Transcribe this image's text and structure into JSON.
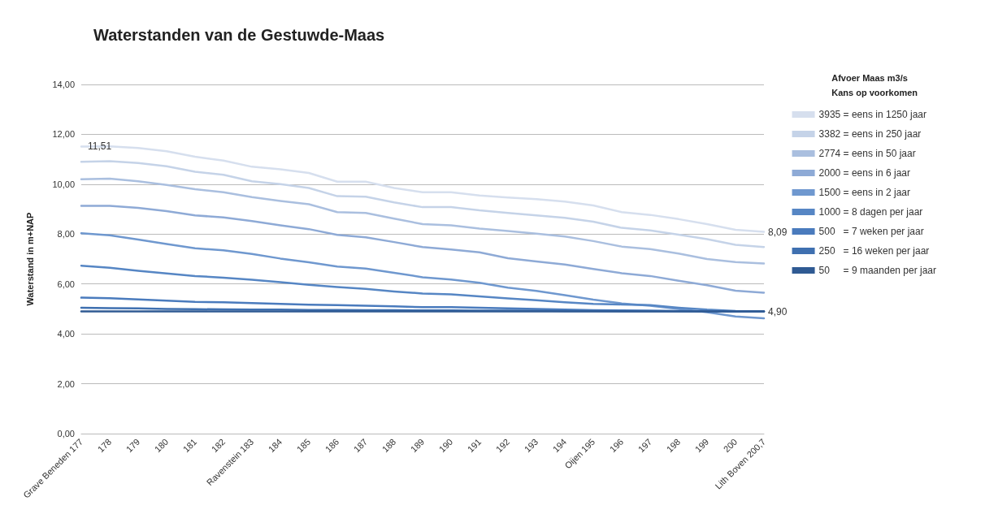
{
  "chart_data": {
    "type": "line",
    "title": "Waterstanden van de Gestuwde-Maas",
    "ylabel": "Waterstand in m+NAP",
    "legend_title": "Afvoer Maas m3/s\nKans op voorkomen",
    "categories": [
      "Grave Beneden 177",
      "178",
      "179",
      "180",
      "181",
      "182",
      "Ravenstein 183",
      "184",
      "185",
      "186",
      "187",
      "188",
      "189",
      "190",
      "191",
      "192",
      "193",
      "194",
      "Oijen 195",
      "196",
      "197",
      "198",
      "199",
      "200",
      "Lith Boven 200,7"
    ],
    "series": [
      {
        "name": "3935 = eens in 1250 jaar",
        "color": "#d6dfee",
        "values": [
          11.51,
          11.52,
          11.45,
          11.32,
          11.1,
          10.95,
          10.7,
          10.6,
          10.45,
          10.1,
          10.1,
          9.85,
          9.68,
          9.68,
          9.55,
          9.47,
          9.4,
          9.3,
          9.15,
          8.88,
          8.77,
          8.6,
          8.4,
          8.17,
          8.09
        ],
        "value_labels": [
          "11,51",
          null,
          null,
          null,
          null,
          null,
          null,
          null,
          null,
          null,
          null,
          null,
          null,
          null,
          null,
          null,
          null,
          null,
          null,
          null,
          null,
          null,
          null,
          null,
          "8,09"
        ]
      },
      {
        "name": "3382 = eens in 250 jaar",
        "color": "#c5d3e8",
        "values": [
          10.9,
          10.92,
          10.85,
          10.72,
          10.5,
          10.38,
          10.12,
          10.0,
          9.85,
          9.52,
          9.5,
          9.27,
          9.08,
          9.08,
          8.95,
          8.85,
          8.75,
          8.65,
          8.5,
          8.25,
          8.15,
          7.98,
          7.8,
          7.57,
          7.48
        ]
      },
      {
        "name": "2774 = eens in 50 jaar",
        "color": "#aabfdf",
        "values": [
          10.2,
          10.22,
          10.12,
          9.97,
          9.8,
          9.68,
          9.48,
          9.33,
          9.2,
          8.88,
          8.85,
          8.62,
          8.4,
          8.35,
          8.22,
          8.12,
          8.02,
          7.9,
          7.72,
          7.5,
          7.4,
          7.22,
          7.0,
          6.88,
          6.82
        ]
      },
      {
        "name": "2000 = eens in 6 jaar",
        "color": "#8eaad6",
        "values": [
          9.13,
          9.13,
          9.05,
          8.92,
          8.75,
          8.67,
          8.52,
          8.35,
          8.2,
          7.97,
          7.87,
          7.68,
          7.48,
          7.38,
          7.27,
          7.03,
          6.9,
          6.78,
          6.6,
          6.43,
          6.32,
          6.13,
          5.95,
          5.73,
          5.65
        ]
      },
      {
        "name": "1500 = eens in 2 jaar",
        "color": "#6f98cf",
        "values": [
          8.03,
          7.95,
          7.78,
          7.6,
          7.43,
          7.35,
          7.2,
          7.02,
          6.87,
          6.7,
          6.62,
          6.45,
          6.27,
          6.18,
          6.05,
          5.85,
          5.72,
          5.55,
          5.37,
          5.22,
          5.13,
          5.0,
          4.87,
          4.7,
          4.62
        ]
      },
      {
        "name": "1000 = 8 dagen per jaar",
        "color": "#5686c4",
        "values": [
          6.73,
          6.65,
          6.53,
          6.42,
          6.32,
          6.25,
          6.17,
          6.07,
          5.97,
          5.88,
          5.8,
          5.7,
          5.62,
          5.58,
          5.5,
          5.42,
          5.35,
          5.27,
          5.2,
          5.18,
          5.15,
          5.05,
          4.97,
          4.92,
          4.9
        ]
      },
      {
        "name": "500   = 7 weken per jaar",
        "color": "#4a7bbd",
        "values": [
          5.45,
          5.43,
          5.38,
          5.33,
          5.28,
          5.27,
          5.23,
          5.2,
          5.17,
          5.15,
          5.13,
          5.1,
          5.07,
          5.07,
          5.05,
          5.02,
          5.0,
          4.97,
          4.95,
          4.94,
          4.93,
          4.92,
          4.91,
          4.9,
          4.9
        ]
      },
      {
        "name": "250   = 16 weken per jaar",
        "color": "#3f70b0",
        "values": [
          5.05,
          5.03,
          5.02,
          5.0,
          4.99,
          4.98,
          4.97,
          4.97,
          4.96,
          4.96,
          4.95,
          4.95,
          4.94,
          4.94,
          4.93,
          4.93,
          4.93,
          4.92,
          4.92,
          4.91,
          4.91,
          4.91,
          4.9,
          4.9,
          4.9
        ]
      },
      {
        "name": "50     = 9 maanden per jaar",
        "color": "#2f5a93",
        "values": [
          4.9,
          4.9,
          4.9,
          4.9,
          4.9,
          4.9,
          4.9,
          4.9,
          4.9,
          4.9,
          4.9,
          4.9,
          4.9,
          4.9,
          4.9,
          4.9,
          4.9,
          4.9,
          4.9,
          4.9,
          4.9,
          4.9,
          4.9,
          4.9,
          4.9
        ],
        "value_labels": [
          null,
          null,
          null,
          null,
          null,
          null,
          null,
          null,
          null,
          null,
          null,
          null,
          null,
          null,
          null,
          null,
          null,
          null,
          null,
          null,
          null,
          null,
          null,
          null,
          "4,90"
        ]
      }
    ],
    "ylim": [
      0,
      14
    ],
    "yticks": [
      {
        "value": 0,
        "label": "0,00"
      },
      {
        "value": 2,
        "label": "2,00"
      },
      {
        "value": 4,
        "label": "4,00"
      },
      {
        "value": 6,
        "label": "6,00"
      },
      {
        "value": 8,
        "label": "8,00"
      },
      {
        "value": 10,
        "label": "10,00"
      },
      {
        "value": 12,
        "label": "12,00"
      },
      {
        "value": 14,
        "label": "14,00"
      }
    ],
    "grid": "y",
    "legend": "right",
    "marker": "none",
    "line_style": "solid"
  }
}
